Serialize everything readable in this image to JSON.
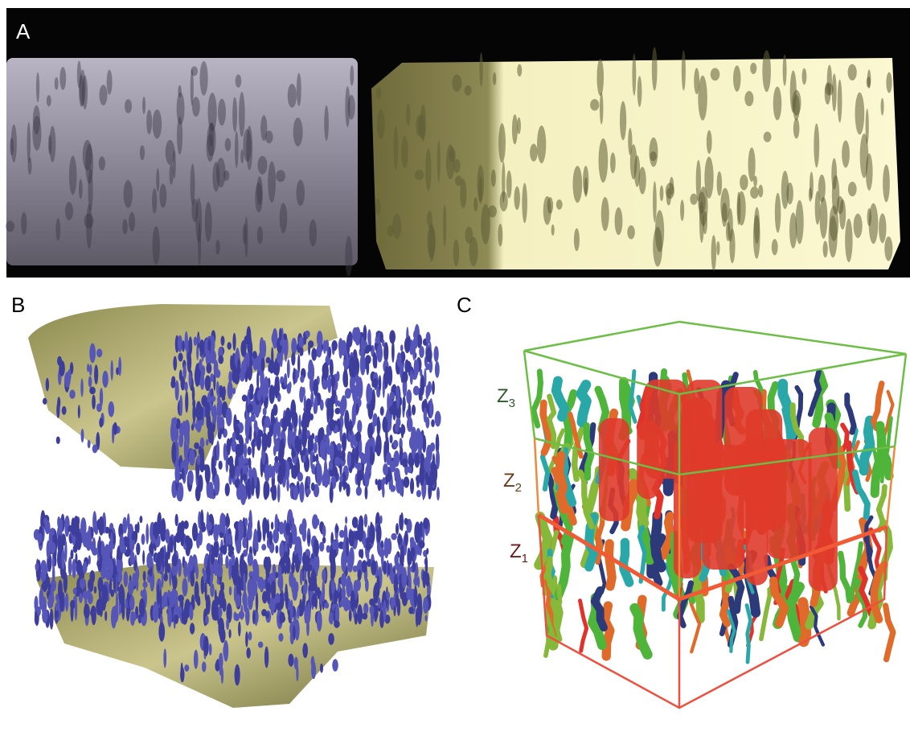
{
  "panels": [
    {
      "label": "A"
    },
    {
      "label": "B"
    },
    {
      "label": "C",
      "layers": [
        {
          "letter": "Z",
          "sub": "3"
        },
        {
          "letter": "Z",
          "sub": "2"
        },
        {
          "letter": "Z",
          "sub": "1"
        }
      ]
    }
  ]
}
